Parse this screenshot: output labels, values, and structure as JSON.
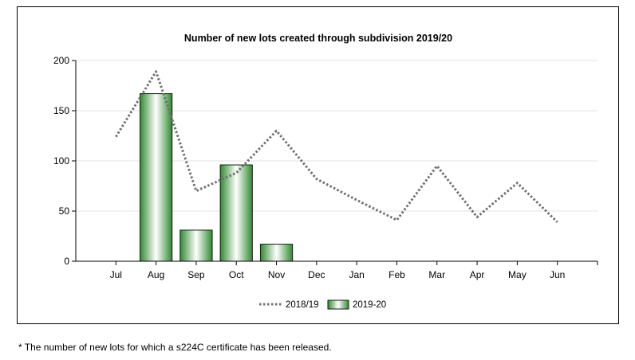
{
  "chart_data": {
    "type": "bar",
    "title": "Number of new lots created through subdivision 2019/20",
    "categories": [
      "Jul",
      "Aug",
      "Sep",
      "Oct",
      "Nov",
      "Dec",
      "Jan",
      "Feb",
      "Mar",
      "Apr",
      "May",
      "Jun"
    ],
    "series": [
      {
        "name": "2018/19",
        "type": "line",
        "style": "dotted",
        "color": "#707070",
        "values": [
          124,
          189,
          70,
          88,
          130,
          82,
          61,
          41,
          95,
          44,
          78,
          39
        ]
      },
      {
        "name": "2019-20",
        "type": "bar",
        "color": "#3a9a3a",
        "values": [
          null,
          167,
          31,
          96,
          17,
          null,
          null,
          null,
          null,
          null,
          null,
          null
        ]
      }
    ],
    "xlabel": "",
    "ylabel": "",
    "ylim": [
      0,
      200
    ],
    "yticks": [
      "0",
      "50",
      "100",
      "150",
      "200"
    ],
    "grid": true,
    "legend": "bottom"
  },
  "footnote": "* The number of new lots for which a s224C certificate has been released."
}
